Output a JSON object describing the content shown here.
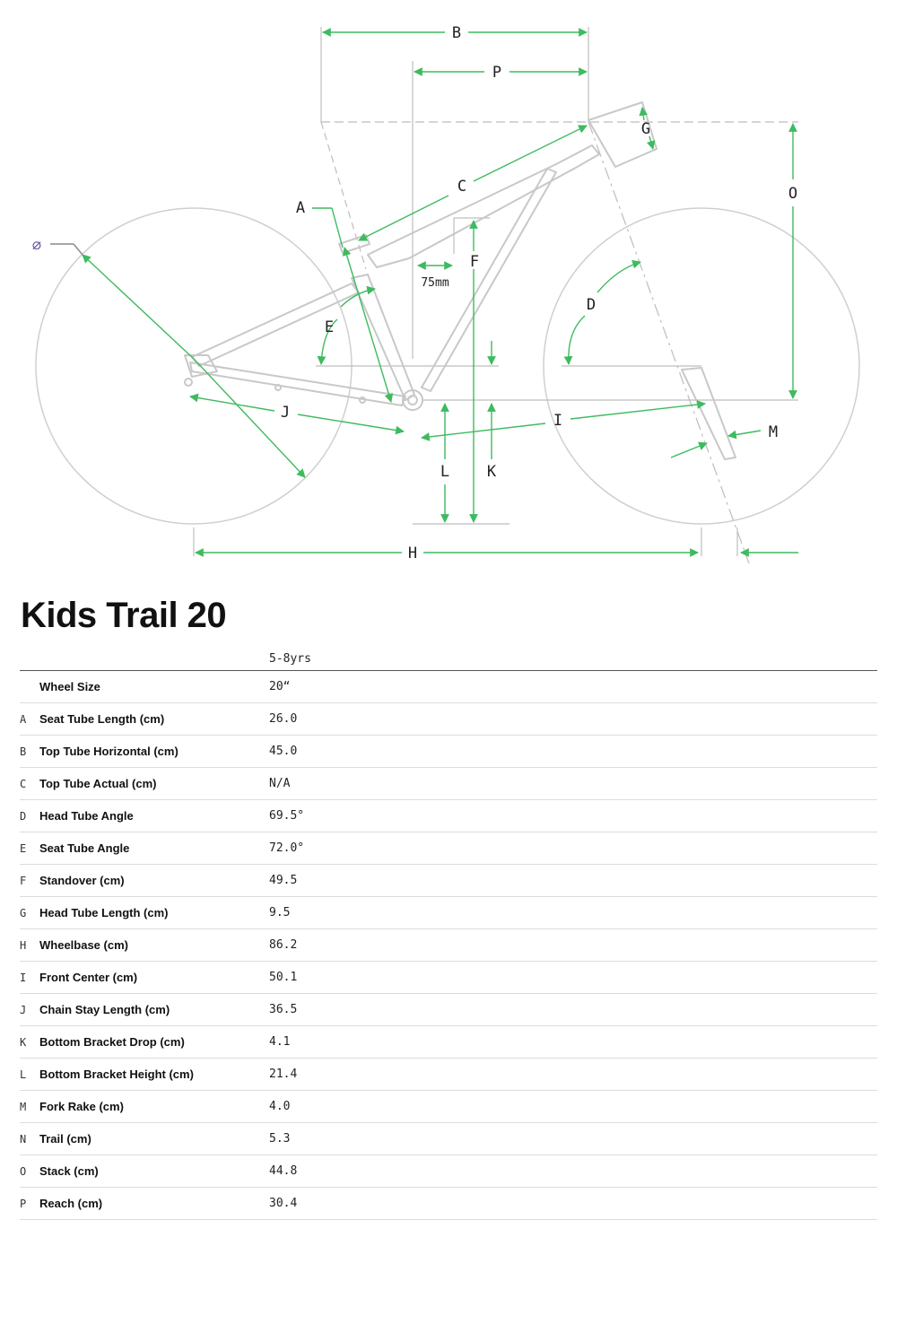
{
  "model_title": "Kids Trail 20",
  "size_header": "5-8yrs",
  "colors": {
    "accent": "#3dbb5e",
    "frame": "#c8c8c8",
    "guide": "#bdbdbd",
    "text": "#111111",
    "diameter_symbol": "#6a4f9c"
  },
  "diagram": {
    "labels": {
      "A": "A",
      "B": "B",
      "C": "C",
      "D": "D",
      "E": "E",
      "F": "F",
      "G": "G",
      "H": "H",
      "I": "I",
      "J": "J",
      "K": "K",
      "L": "L",
      "M": "M",
      "O": "O",
      "P": "P"
    },
    "seatpost_offset_note": "75mm",
    "wheel_diameter_symbol": "⌀"
  },
  "geometry": [
    {
      "code": "",
      "label": "Wheel Size",
      "value": "20“"
    },
    {
      "code": "A",
      "label": "Seat Tube Length (cm)",
      "value": "26.0"
    },
    {
      "code": "B",
      "label": "Top Tube Horizontal (cm)",
      "value": "45.0"
    },
    {
      "code": "C",
      "label": "Top Tube Actual (cm)",
      "value": "N/A"
    },
    {
      "code": "D",
      "label": "Head Tube Angle",
      "value": "69.5°"
    },
    {
      "code": "E",
      "label": "Seat Tube Angle",
      "value": "72.0°"
    },
    {
      "code": "F",
      "label": "Standover (cm)",
      "value": "49.5"
    },
    {
      "code": "G",
      "label": "Head Tube Length (cm)",
      "value": "9.5"
    },
    {
      "code": "H",
      "label": "Wheelbase (cm)",
      "value": "86.2"
    },
    {
      "code": "I",
      "label": "Front Center (cm)",
      "value": "50.1"
    },
    {
      "code": "J",
      "label": "Chain Stay Length (cm)",
      "value": "36.5"
    },
    {
      "code": "K",
      "label": "Bottom Bracket Drop (cm)",
      "value": "4.1"
    },
    {
      "code": "L",
      "label": "Bottom Bracket Height (cm)",
      "value": "21.4"
    },
    {
      "code": "M",
      "label": "Fork Rake (cm)",
      "value": "4.0"
    },
    {
      "code": "N",
      "label": "Trail (cm)",
      "value": "5.3"
    },
    {
      "code": "O",
      "label": "Stack (cm)",
      "value": "44.8"
    },
    {
      "code": "P",
      "label": "Reach (cm)",
      "value": "30.4"
    }
  ]
}
